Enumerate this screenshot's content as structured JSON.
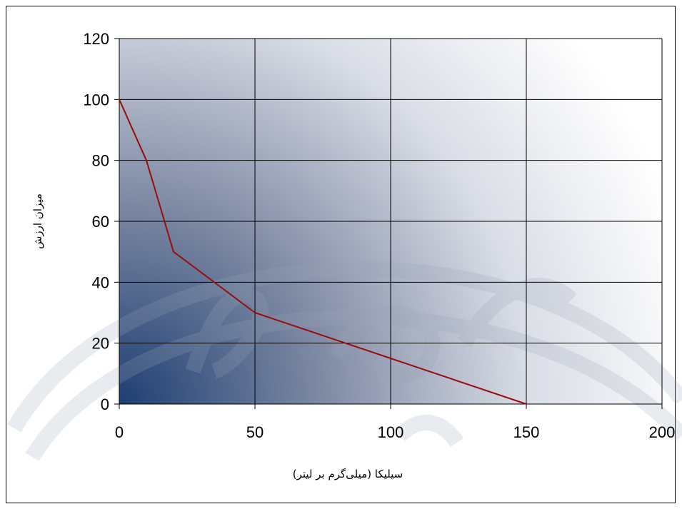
{
  "chart_data": {
    "type": "line",
    "title": "",
    "xlabel": "سیلیکا (میلی‌گرم بر لیتر)",
    "ylabel": "میزان ارزش",
    "xlim": [
      0,
      200
    ],
    "ylim": [
      0,
      120
    ],
    "x_ticks": [
      0,
      50,
      100,
      150,
      200
    ],
    "y_ticks": [
      0,
      20,
      40,
      60,
      80,
      100,
      120
    ],
    "grid": true,
    "series": [
      {
        "color": "#9b0c0c",
        "points": [
          [
            0,
            100
          ],
          [
            10,
            80
          ],
          [
            20,
            50
          ],
          [
            50,
            30
          ],
          [
            100,
            15
          ],
          [
            150,
            0
          ]
        ]
      }
    ]
  },
  "colors": {
    "plot_gradient_dark": "#1e3f73",
    "plot_gradient_light": "#ffffff",
    "gridline": "#000000",
    "watermark": "#9aa6b8"
  }
}
